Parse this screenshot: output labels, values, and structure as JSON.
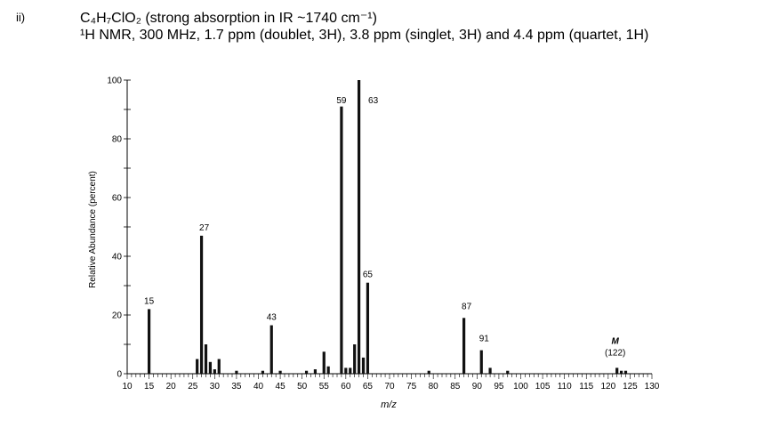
{
  "problem": {
    "number": "ii)",
    "formula_line": "C₄H₇ClO₂ (strong absorption in IR ~1740 cm⁻¹)",
    "nmr_line": "¹H NMR, 300 MHz, 1.7 ppm (doublet, 3H), 3.8 ppm (singlet, 3H) and 4.4 ppm (quartet, 1H)"
  },
  "chart_data": {
    "type": "bar",
    "xlabel": "m/z",
    "ylabel": "Relative Abundance (percent)",
    "xlim": [
      10,
      130
    ],
    "ylim": [
      0,
      100
    ],
    "x_ticks": [
      10,
      15,
      20,
      25,
      30,
      35,
      40,
      45,
      50,
      55,
      60,
      65,
      70,
      75,
      80,
      85,
      90,
      95,
      100,
      105,
      110,
      115,
      120,
      125,
      130
    ],
    "y_ticks": [
      0,
      20,
      40,
      60,
      80,
      100
    ],
    "peaks": [
      {
        "mz": 15,
        "value": 22
      },
      {
        "mz": 26,
        "value": 5
      },
      {
        "mz": 27,
        "value": 47
      },
      {
        "mz": 28,
        "value": 10
      },
      {
        "mz": 29,
        "value": 4
      },
      {
        "mz": 30,
        "value": 1.5
      },
      {
        "mz": 31,
        "value": 5
      },
      {
        "mz": 35,
        "value": 1
      },
      {
        "mz": 41,
        "value": 1
      },
      {
        "mz": 43,
        "value": 16.5
      },
      {
        "mz": 45,
        "value": 1
      },
      {
        "mz": 51,
        "value": 1
      },
      {
        "mz": 53,
        "value": 1.5
      },
      {
        "mz": 55,
        "value": 7.5
      },
      {
        "mz": 56,
        "value": 2.5
      },
      {
        "mz": 59,
        "value": 91
      },
      {
        "mz": 60,
        "value": 2
      },
      {
        "mz": 61,
        "value": 2
      },
      {
        "mz": 62,
        "value": 10
      },
      {
        "mz": 63,
        "value": 100
      },
      {
        "mz": 64,
        "value": 5.5
      },
      {
        "mz": 65,
        "value": 31
      },
      {
        "mz": 79,
        "value": 1
      },
      {
        "mz": 87,
        "value": 19
      },
      {
        "mz": 91,
        "value": 8
      },
      {
        "mz": 93,
        "value": 2
      },
      {
        "mz": 97,
        "value": 1
      },
      {
        "mz": 122,
        "value": 2
      },
      {
        "mz": 123,
        "value": 1
      },
      {
        "mz": 124,
        "value": 1
      }
    ],
    "peak_labels": [
      {
        "mz": 15,
        "text": "15"
      },
      {
        "mz": 27,
        "text": "27"
      },
      {
        "mz": 43,
        "text": "43"
      },
      {
        "mz": 59,
        "text": "59"
      },
      {
        "mz": 63,
        "text": "63"
      },
      {
        "mz": 65,
        "text": "65"
      },
      {
        "mz": 87,
        "text": "87"
      },
      {
        "mz": 91,
        "text": "91"
      }
    ],
    "molecular_ion": {
      "mz": 122,
      "symbol": "M",
      "mass_text": "(122)"
    }
  }
}
